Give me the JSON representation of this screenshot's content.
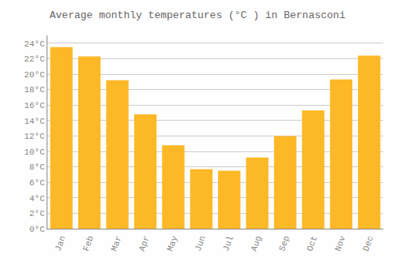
{
  "chart_data": {
    "type": "bar",
    "title": "Average monthly temperatures (°C ) in Bernasconi",
    "categories": [
      "Jan",
      "Feb",
      "Mar",
      "Apr",
      "May",
      "Jun",
      "Jul",
      "Aug",
      "Sep",
      "Oct",
      "Nov",
      "Dec"
    ],
    "values": [
      23.5,
      22.3,
      19.2,
      14.8,
      10.8,
      7.7,
      7.5,
      9.2,
      12.0,
      15.3,
      19.3,
      22.4
    ],
    "color": "#FDB827",
    "ylim": [
      0,
      25
    ],
    "yticks": [
      {
        "value": 0,
        "label": "0°C"
      },
      {
        "value": 2,
        "label": "2°C"
      },
      {
        "value": 4,
        "label": "4°C"
      },
      {
        "value": 6,
        "label": "6°C"
      },
      {
        "value": 8,
        "label": "8°C"
      },
      {
        "value": 10,
        "label": "10°C"
      },
      {
        "value": 12,
        "label": "12°C"
      },
      {
        "value": 14,
        "label": "14°C"
      },
      {
        "value": 16,
        "label": "16°C"
      },
      {
        "value": 18,
        "label": "18°C"
      },
      {
        "value": 20,
        "label": "20°C"
      },
      {
        "value": 22,
        "label": "22°C"
      },
      {
        "value": 24,
        "label": "24°C"
      }
    ],
    "grid": true
  }
}
